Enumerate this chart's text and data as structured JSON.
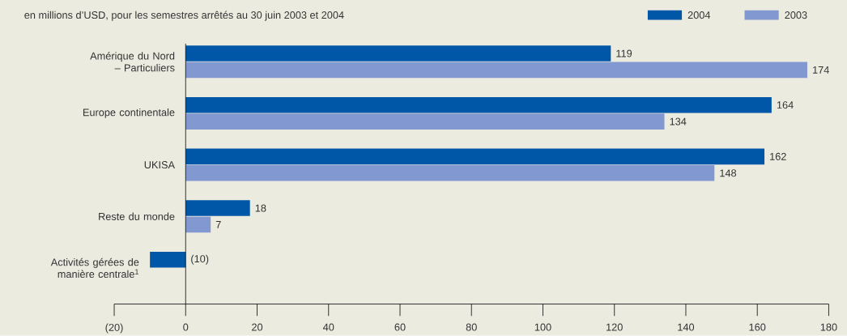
{
  "chart_data": {
    "type": "bar",
    "orientation": "horizontal",
    "subtitle": "en millions d’USD, pour les semestres arrêtés au 30 juin 2003 et 2004",
    "categories": [
      "Amérique du Nord – Particuliers",
      "Europe continentale",
      "UKISA",
      "Reste du monde",
      "Activités gérées de manière centrale$^{1}$"
    ],
    "series": [
      {
        "name": "2004",
        "color": "#0057a8",
        "values": [
          119,
          164,
          162,
          18,
          -10
        ],
        "value_labels": [
          "119",
          "164",
          "162",
          "18",
          "(10)"
        ]
      },
      {
        "name": "2003",
        "color": "#8298d0",
        "values": [
          174,
          134,
          148,
          7,
          null
        ],
        "value_labels": [
          "174",
          "134",
          "148",
          "7",
          null
        ]
      }
    ],
    "xlim": [
      -20,
      180
    ],
    "xticks": [
      {
        "value": -20,
        "label": "(20)"
      },
      0,
      20,
      40,
      60,
      80,
      100,
      120,
      140,
      160,
      180
    ],
    "legend": "top right",
    "grid": false
  }
}
